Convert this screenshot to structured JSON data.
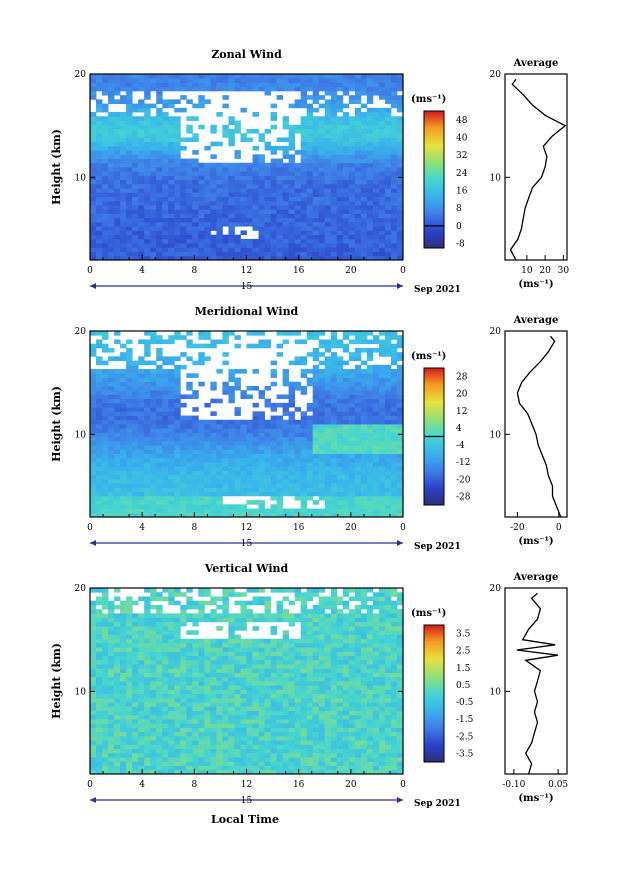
{
  "x_axis_label": "Local Time",
  "chart_data": [
    {
      "type": "heatmap",
      "title": "Zonal Wind",
      "ylabel": "Height (km)",
      "ylim": [
        2,
        20
      ],
      "yticks": [
        20,
        10
      ],
      "xlim": [
        0,
        24
      ],
      "xtick_labels": [
        "0",
        "4",
        "8",
        "12",
        "16",
        "20",
        "0"
      ],
      "date_marker": "15",
      "date_label": "Sep 2021",
      "colorbar": {
        "unit": "(ms⁻¹)",
        "ticks": [
          "48",
          "40",
          "32",
          "24",
          "16",
          "8",
          "0",
          "-8"
        ],
        "min": -10,
        "max": 52,
        "zero_line": 0
      },
      "profile": {
        "title": "Average",
        "xlim": [
          -2,
          32
        ],
        "xtick_labels": [
          "10",
          "20",
          "30"
        ],
        "xtick_values": [
          10,
          20,
          30
        ],
        "xlabel": "(ms⁻¹)",
        "ylim": [
          2,
          20
        ],
        "ytick_labels": [
          "20",
          "10"
        ],
        "heights": [
          2,
          3,
          4,
          5,
          6,
          7,
          8,
          9,
          10,
          11,
          12,
          13,
          14,
          15,
          16,
          17,
          18,
          19,
          19.5
        ],
        "values": [
          4,
          1,
          5,
          7,
          8,
          9,
          11,
          13,
          18,
          20,
          21,
          19,
          24,
          31,
          20,
          13,
          8,
          2,
          4
        ]
      }
    },
    {
      "type": "heatmap",
      "title": "Meridional Wind",
      "ylabel": "Height (km)",
      "ylim": [
        2,
        20
      ],
      "yticks": [
        20,
        10
      ],
      "xlim": [
        0,
        24
      ],
      "xtick_labels": [
        "0",
        "4",
        "8",
        "12",
        "16",
        "20",
        "0"
      ],
      "date_marker": "15",
      "date_label": "Sep 2021",
      "colorbar": {
        "unit": "(ms⁻¹)",
        "ticks": [
          "28",
          "20",
          "12",
          "4",
          "-4",
          "-12",
          "-20",
          "-28"
        ],
        "min": -32,
        "max": 32,
        "zero_line": 0
      },
      "profile": {
        "title": "Average",
        "xlim": [
          -26,
          4
        ],
        "xtick_labels": [
          "-20",
          "0"
        ],
        "xtick_values": [
          -20,
          0
        ],
        "xlabel": "(ms⁻¹)",
        "ylim": [
          2,
          20
        ],
        "ytick_labels": [
          "20",
          "10"
        ],
        "heights": [
          2,
          3,
          4,
          5,
          6,
          7,
          8,
          9,
          10,
          11,
          12,
          13,
          14,
          15,
          16,
          17,
          18,
          19,
          19.5
        ],
        "values": [
          1,
          -1,
          -3,
          -3,
          -5,
          -6,
          -8,
          -10,
          -11,
          -13,
          -15,
          -19,
          -20,
          -18,
          -14,
          -9,
          -5,
          -2,
          -4
        ]
      }
    },
    {
      "type": "heatmap",
      "title": "Vertical Wind",
      "ylabel": "Height (km)",
      "ylim": [
        2,
        20
      ],
      "yticks": [
        20,
        10
      ],
      "xlim": [
        0,
        24
      ],
      "xtick_labels": [
        "0",
        "4",
        "8",
        "12",
        "16",
        "20",
        "0"
      ],
      "date_marker": "15",
      "date_label": "Sep 2021",
      "colorbar": {
        "unit": "(ms⁻¹)",
        "ticks": [
          "3.5",
          "2.5",
          "1.5",
          "0.5",
          "-0.5",
          "-1.5",
          "-2.5",
          "-3.5"
        ],
        "min": -4,
        "max": 4,
        "zero_line": null
      },
      "profile": {
        "title": "Average",
        "xlim": [
          -0.13,
          0.08
        ],
        "xtick_labels": [
          "-0.10",
          "0.05"
        ],
        "xtick_values": [
          -0.1,
          0.05
        ],
        "xlabel": "(ms⁻¹)",
        "ylim": [
          2,
          20
        ],
        "ytick_labels": [
          "20",
          "10"
        ],
        "heights": [
          2,
          3,
          4,
          5,
          6,
          7,
          8,
          9,
          10,
          11,
          12,
          13,
          13.5,
          14,
          14.5,
          15,
          16,
          17,
          18,
          19,
          19.5
        ],
        "values": [
          -0.05,
          -0.04,
          -0.06,
          -0.04,
          -0.03,
          -0.02,
          -0.03,
          -0.02,
          -0.03,
          -0.02,
          -0.01,
          -0.06,
          0.05,
          -0.09,
          0.04,
          -0.07,
          -0.05,
          -0.02,
          -0.01,
          -0.04,
          -0.02
        ]
      }
    }
  ]
}
